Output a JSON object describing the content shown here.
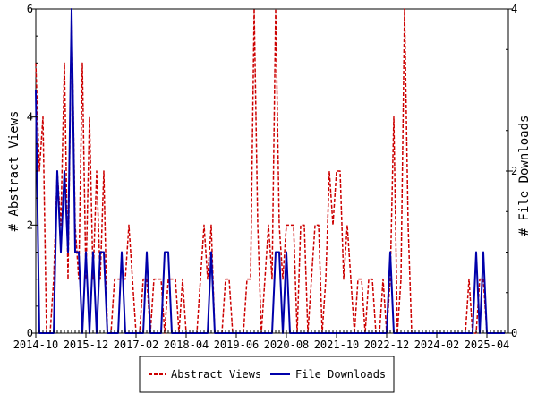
{
  "chart_data": {
    "type": "line",
    "x_ticks": [
      "2014-10",
      "2015-12",
      "2017-02",
      "2018-04",
      "2019-06",
      "2020-08",
      "2021-10",
      "2022-12",
      "2024-02",
      "2025-04"
    ],
    "x_range": [
      "2014-10",
      "2025-10"
    ],
    "y_left": {
      "label": "# Abstract Views",
      "ticks": [
        "0",
        "2",
        "4",
        "6"
      ],
      "range": [
        0,
        6
      ]
    },
    "y_right": {
      "label": "# File Downloads",
      "ticks": [
        "0",
        "2",
        "4"
      ],
      "range": [
        0,
        4
      ]
    },
    "grid": false,
    "legend_position": "bottom",
    "series": [
      {
        "name": "Abstract Views",
        "axis": "left",
        "color": "#cc0000",
        "style": "dashed",
        "x": [
          "2014-10",
          "2014-11",
          "2014-12",
          "2015-01",
          "2015-02",
          "2015-03",
          "2015-04",
          "2015-05",
          "2015-06",
          "2015-07",
          "2015-08",
          "2015-09",
          "2015-10",
          "2015-11",
          "2015-12",
          "2016-01",
          "2016-02",
          "2016-03",
          "2016-04",
          "2016-05",
          "2016-06",
          "2016-07",
          "2016-08",
          "2016-09",
          "2016-10",
          "2016-11",
          "2016-12",
          "2017-01",
          "2017-02",
          "2017-03",
          "2017-04",
          "2017-05",
          "2017-06",
          "2017-07",
          "2017-08",
          "2017-09",
          "2017-10",
          "2017-11",
          "2017-12",
          "2018-01",
          "2018-02",
          "2018-03",
          "2018-04",
          "2018-05",
          "2018-06",
          "2018-07",
          "2018-08",
          "2018-09",
          "2018-10",
          "2018-11",
          "2018-12",
          "2019-01",
          "2019-02",
          "2019-03",
          "2019-04",
          "2019-05",
          "2019-06",
          "2019-07",
          "2019-08",
          "2019-09",
          "2019-10",
          "2019-11",
          "2019-12",
          "2020-01",
          "2020-02",
          "2020-03",
          "2020-04",
          "2020-05",
          "2020-06",
          "2020-07",
          "2020-08",
          "2020-09",
          "2020-10",
          "2020-11",
          "2020-12",
          "2021-01",
          "2021-02",
          "2021-03",
          "2021-04",
          "2021-05",
          "2021-06",
          "2021-07",
          "2021-08",
          "2021-09",
          "2021-10",
          "2021-11",
          "2021-12",
          "2022-01",
          "2022-02",
          "2022-03",
          "2022-04",
          "2022-05",
          "2022-06",
          "2022-07",
          "2022-08",
          "2022-09",
          "2022-10",
          "2022-11",
          "2022-12",
          "2023-01",
          "2023-02",
          "2023-03",
          "2023-04",
          "2023-05",
          "2023-06",
          "2023-07",
          "2023-08",
          "2023-09",
          "2023-10",
          "2023-11",
          "2023-12",
          "2024-01",
          "2024-02",
          "2024-03",
          "2024-04",
          "2024-05",
          "2024-06",
          "2024-07",
          "2024-08",
          "2024-09",
          "2024-10",
          "2024-11",
          "2024-12",
          "2025-01",
          "2025-02",
          "2025-03",
          "2025-04",
          "2025-05",
          "2025-06",
          "2025-07",
          "2025-08",
          "2025-09"
        ],
        "values": [
          5,
          3,
          4,
          0,
          0,
          1,
          3,
          2,
          5,
          1,
          6,
          2,
          1,
          5,
          1,
          4,
          1,
          3,
          1,
          3,
          0,
          0,
          1,
          1,
          1,
          1,
          2,
          1,
          0,
          0,
          1,
          1,
          0,
          1,
          1,
          1,
          0,
          1,
          1,
          1,
          0,
          1,
          0,
          0,
          0,
          0,
          1,
          2,
          1,
          2,
          0,
          0,
          0,
          1,
          1,
          0,
          0,
          0,
          0,
          1,
          1,
          6,
          2,
          0,
          1,
          2,
          1,
          6,
          2,
          1,
          2,
          2,
          2,
          0,
          2,
          2,
          0,
          1,
          2,
          2,
          0,
          1,
          3,
          2,
          3,
          3,
          1,
          2,
          1,
          0,
          1,
          1,
          0,
          1,
          1,
          0,
          0,
          1,
          0,
          1,
          4,
          0,
          1,
          6,
          2,
          0,
          0,
          0,
          0,
          0,
          0,
          0,
          0,
          0,
          0,
          0,
          0,
          0,
          0,
          0,
          0,
          1,
          0,
          0,
          1,
          1,
          0,
          0,
          0,
          0,
          0,
          0
        ]
      },
      {
        "name": "File Downloads",
        "axis": "right",
        "color": "#0000aa",
        "style": "solid",
        "x": [
          "2014-10",
          "2014-11",
          "2014-12",
          "2015-01",
          "2015-02",
          "2015-03",
          "2015-04",
          "2015-05",
          "2015-06",
          "2015-07",
          "2015-08",
          "2015-09",
          "2015-10",
          "2015-11",
          "2015-12",
          "2016-01",
          "2016-02",
          "2016-03",
          "2016-04",
          "2016-05",
          "2016-06",
          "2016-07",
          "2016-08",
          "2016-09",
          "2016-10",
          "2016-11",
          "2016-12",
          "2017-01",
          "2017-02",
          "2017-03",
          "2017-04",
          "2017-05",
          "2017-06",
          "2017-07",
          "2017-08",
          "2017-09",
          "2017-10",
          "2017-11",
          "2017-12",
          "2018-01",
          "2018-02",
          "2018-03",
          "2018-04",
          "2018-05",
          "2018-06",
          "2018-07",
          "2018-08",
          "2018-09",
          "2018-10",
          "2018-11",
          "2018-12",
          "2019-01",
          "2019-02",
          "2019-03",
          "2019-04",
          "2019-05",
          "2019-06",
          "2019-07",
          "2019-08",
          "2019-09",
          "2019-10",
          "2019-11",
          "2019-12",
          "2020-01",
          "2020-02",
          "2020-03",
          "2020-04",
          "2020-05",
          "2020-06",
          "2020-07",
          "2020-08",
          "2020-09",
          "2020-10",
          "2020-11",
          "2020-12",
          "2021-01",
          "2021-02",
          "2021-03",
          "2021-04",
          "2021-05",
          "2021-06",
          "2021-07",
          "2021-08",
          "2021-09",
          "2021-10",
          "2021-11",
          "2021-12",
          "2022-01",
          "2022-02",
          "2022-03",
          "2022-04",
          "2022-05",
          "2022-06",
          "2022-07",
          "2022-08",
          "2022-09",
          "2022-10",
          "2022-11",
          "2022-12",
          "2023-01",
          "2023-02",
          "2023-03",
          "2023-04",
          "2023-05",
          "2023-06",
          "2023-07",
          "2023-08",
          "2023-09",
          "2023-10",
          "2023-11",
          "2023-12",
          "2024-01",
          "2024-02",
          "2024-03",
          "2024-04",
          "2024-05",
          "2024-06",
          "2024-07",
          "2024-08",
          "2024-09",
          "2024-10",
          "2024-11",
          "2024-12",
          "2025-01",
          "2025-02",
          "2025-03",
          "2025-04",
          "2025-05",
          "2025-06",
          "2025-07",
          "2025-08",
          "2025-09"
        ],
        "values": [
          3,
          0,
          0,
          0,
          0,
          0,
          2,
          1,
          2,
          1,
          4,
          1,
          1,
          0,
          1,
          0,
          1,
          0,
          1,
          1,
          0,
          0,
          0,
          0,
          1,
          0,
          0,
          0,
          0,
          0,
          0,
          1,
          0,
          0,
          0,
          0,
          1,
          1,
          0,
          0,
          0,
          0,
          0,
          0,
          0,
          0,
          0,
          0,
          0,
          1,
          0,
          0,
          0,
          0,
          0,
          0,
          0,
          0,
          0,
          0,
          0,
          0,
          0,
          0,
          0,
          0,
          0,
          1,
          1,
          0,
          1,
          0,
          0,
          0,
          0,
          0,
          0,
          0,
          0,
          0,
          0,
          0,
          0,
          0,
          0,
          0,
          0,
          0,
          0,
          0,
          0,
          0,
          0,
          0,
          0,
          0,
          0,
          0,
          0,
          1,
          0,
          0,
          0,
          0,
          0,
          0,
          0,
          0,
          0,
          0,
          0,
          0,
          0,
          0,
          0,
          0,
          0,
          0,
          0,
          0,
          0,
          0,
          0,
          1,
          0,
          1,
          0,
          0,
          0,
          0,
          0,
          0
        ]
      }
    ]
  },
  "legend": {
    "items": [
      {
        "label": "Abstract Views"
      },
      {
        "label": "File Downloads"
      }
    ]
  }
}
